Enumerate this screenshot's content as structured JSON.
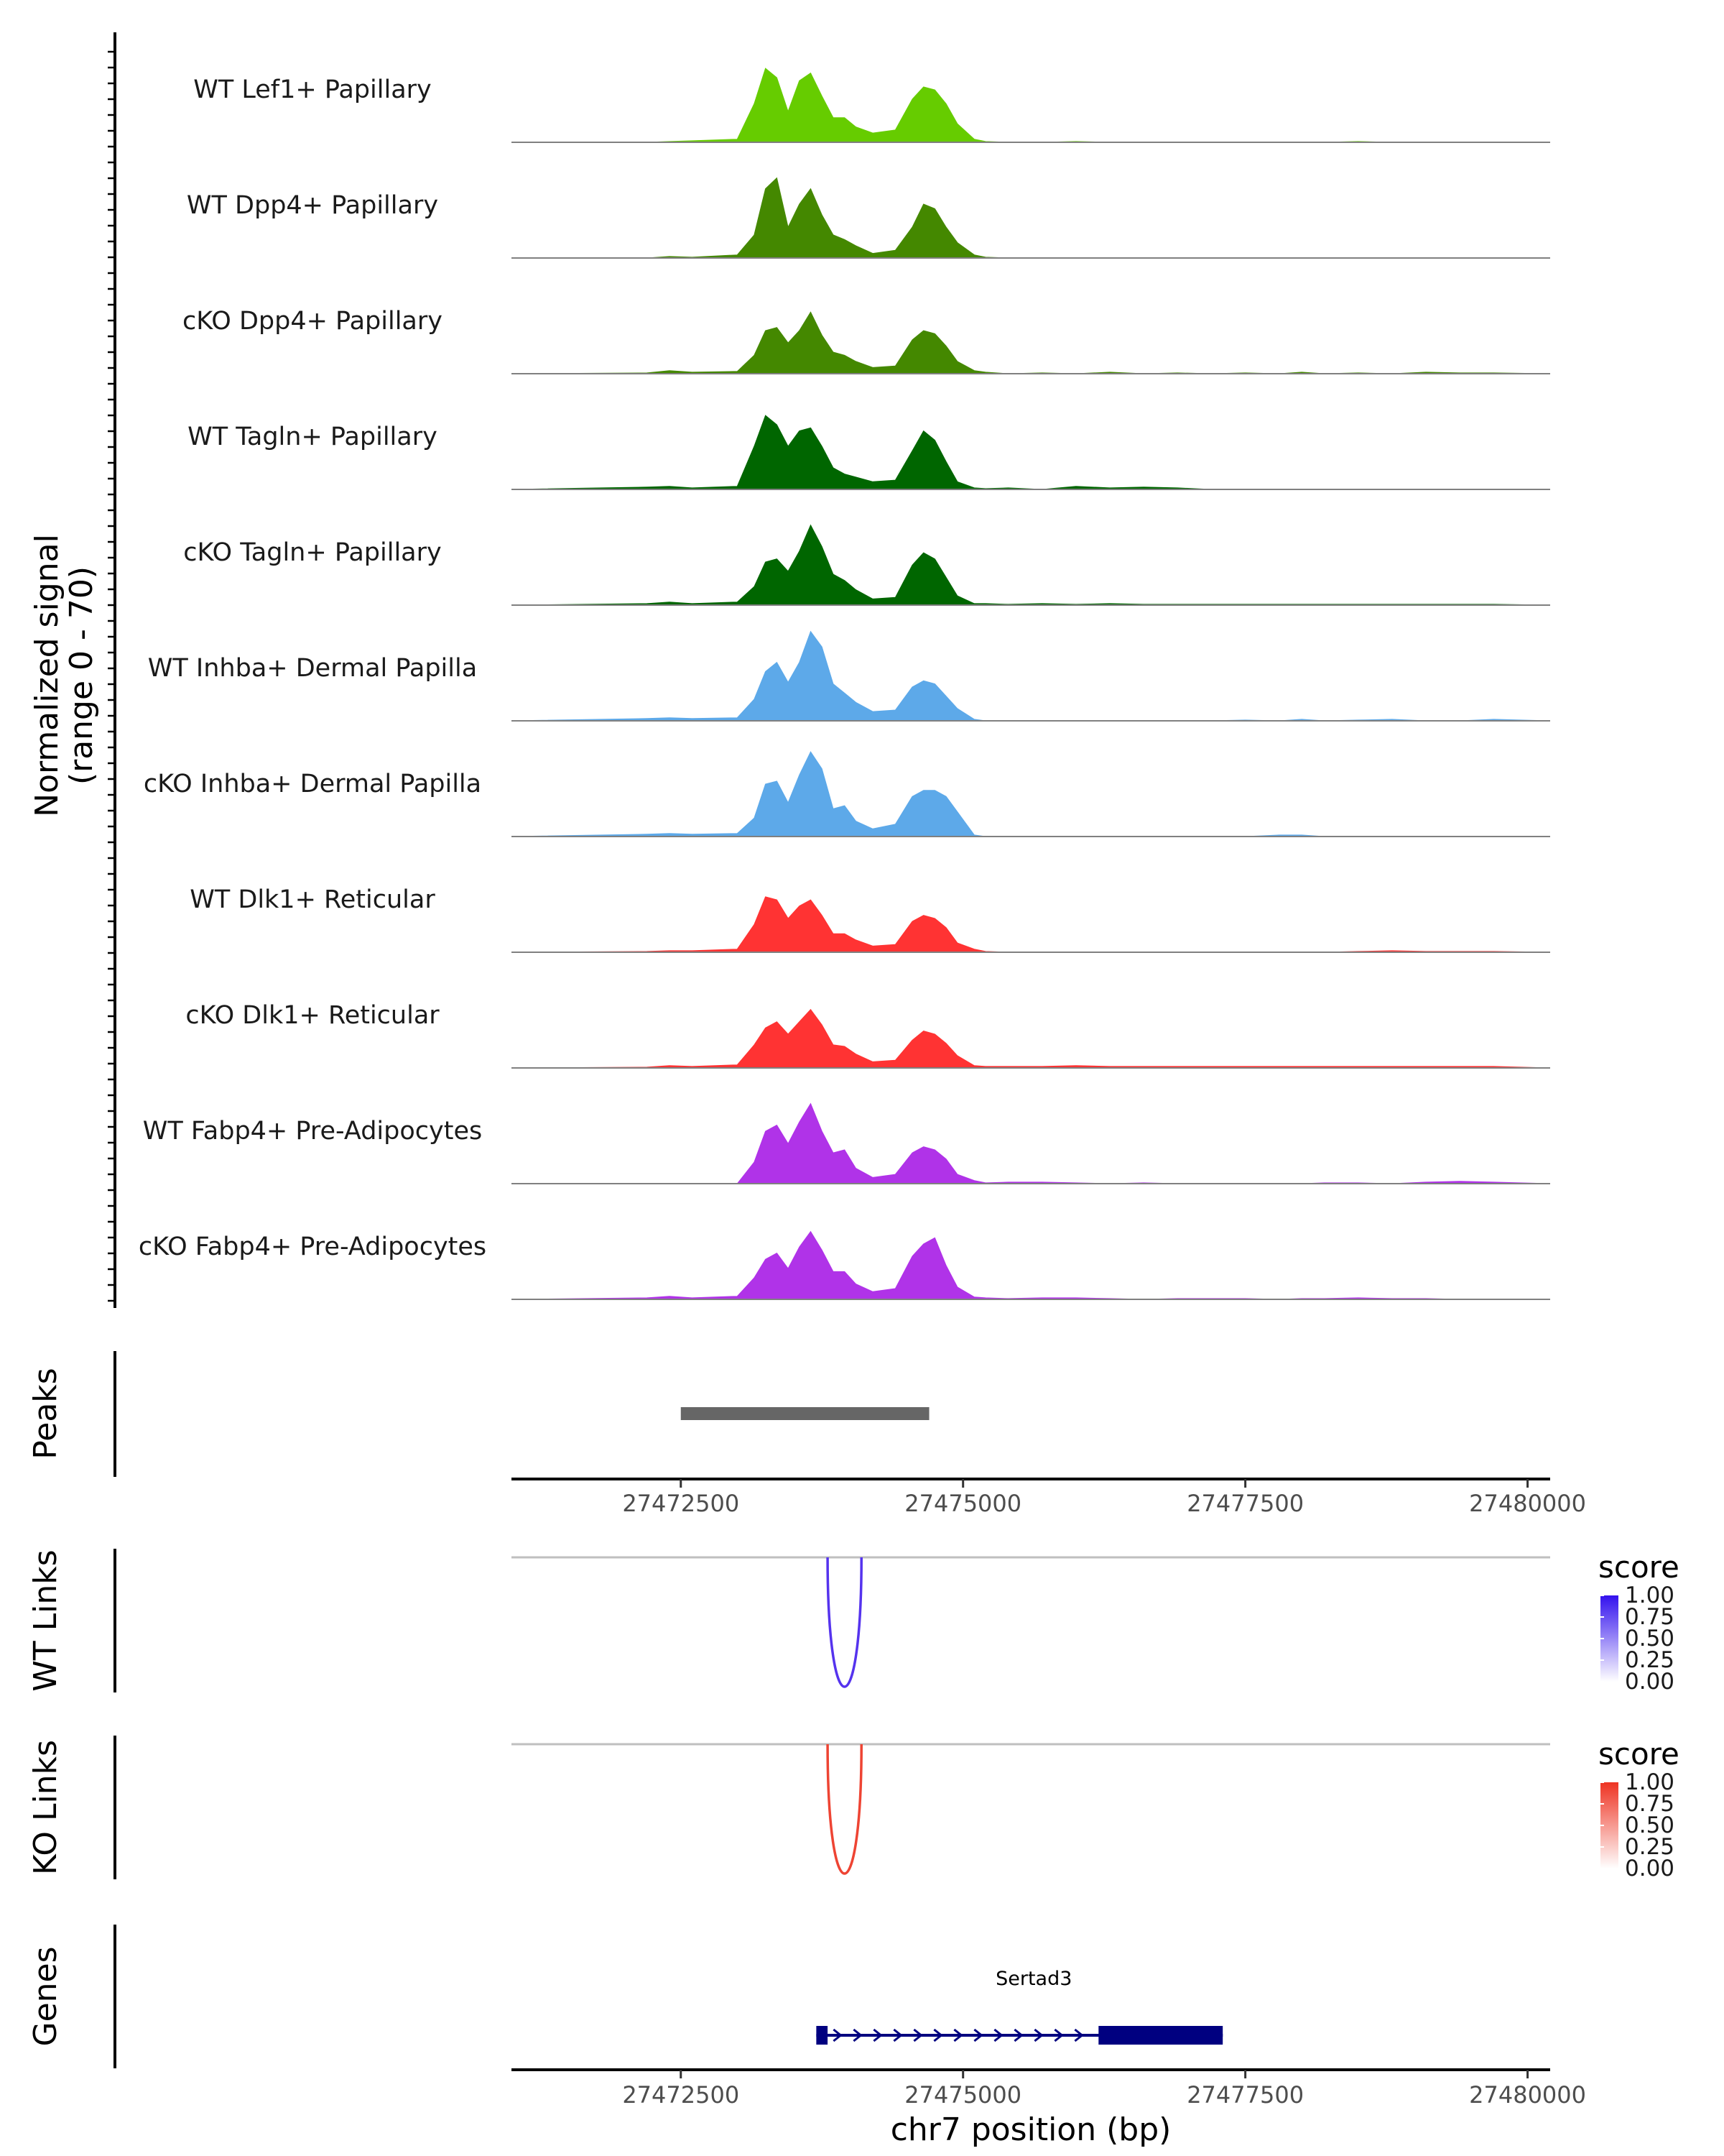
{
  "chart_data": {
    "type": "area",
    "title": "",
    "coverage": {
      "ylabel": "Normalized signal",
      "yrange_label": "(range 0 - 70)",
      "ylim": [
        0,
        70
      ],
      "region_x": [
        27471000,
        27480200
      ],
      "x": [
        27471000,
        27472200,
        27472400,
        27472600,
        27473000,
        27473150,
        27473250,
        27473350,
        27473450,
        27473550,
        27473650,
        27473750,
        27473850,
        27473950,
        27474050,
        27474200,
        27474400,
        27474550,
        27474650,
        27474750,
        27474850,
        27474950,
        27475100,
        27475200,
        27475400,
        27475700,
        27476000,
        27476300,
        27476600,
        27476900,
        27477200,
        27477500,
        27477800,
        27478000,
        27478200,
        27478500,
        27478800,
        27479100,
        27479400,
        27479700,
        27480200
      ],
      "series": [
        {
          "name": "WT Lef1+ Papillary",
          "color": "#66CC00",
          "values": [
            0,
            0,
            0.5,
            1,
            2,
            25,
            48,
            42,
            20,
            40,
            45,
            30,
            16,
            16,
            10,
            6,
            8,
            28,
            36,
            34,
            25,
            12,
            2,
            0.5,
            0,
            0,
            0.5,
            0,
            0,
            0,
            0,
            0,
            0,
            0,
            0,
            0.5,
            0,
            0,
            0,
            0,
            0
          ]
        },
        {
          "name": "WT Dpp4+ Papillary",
          "color": "#448800",
          "values": [
            0,
            0,
            1,
            0.5,
            2,
            15,
            45,
            52,
            20,
            35,
            45,
            28,
            15,
            12,
            8,
            3,
            5,
            20,
            35,
            32,
            20,
            10,
            2,
            0.5,
            0,
            0,
            0,
            0,
            0,
            0,
            0,
            0,
            0,
            0,
            0,
            0,
            0,
            0,
            0,
            0,
            0
          ]
        },
        {
          "name": "cKO Dpp4+ Papillary",
          "color": "#448800",
          "values": [
            0,
            0.5,
            2,
            1,
            1.5,
            12,
            28,
            30,
            20,
            28,
            40,
            25,
            14,
            12,
            8,
            4,
            5,
            22,
            28,
            26,
            18,
            8,
            2,
            1,
            0,
            0.5,
            0,
            1,
            0,
            0.5,
            0,
            0.5,
            0,
            1,
            0,
            0.5,
            0,
            1,
            0.5,
            0.5,
            0
          ]
        },
        {
          "name": "WT Tagln+ Papillary",
          "color": "#006600",
          "values": [
            0,
            1.5,
            2,
            1,
            2,
            28,
            48,
            42,
            28,
            38,
            40,
            28,
            14,
            10,
            8,
            5,
            6,
            25,
            38,
            32,
            18,
            5,
            1,
            0.5,
            1,
            0,
            2,
            1,
            1.5,
            1,
            0,
            0,
            0,
            0,
            0,
            0,
            0,
            0,
            0,
            0,
            0
          ]
        },
        {
          "name": "cKO Tagln+ Papillary",
          "color": "#006600",
          "values": [
            0,
            1,
            2,
            1,
            2,
            12,
            28,
            30,
            22,
            35,
            52,
            38,
            20,
            16,
            10,
            4,
            5,
            26,
            34,
            30,
            18,
            6,
            1,
            1,
            0.5,
            1,
            0.5,
            1,
            0.5,
            0.5,
            0.5,
            0.5,
            0.5,
            0.5,
            0.5,
            0.5,
            0.5,
            0.5,
            0.5,
            0.5,
            0
          ]
        },
        {
          "name": "WT Inhba+ Dermal Papilla",
          "color": "#5DA9E9",
          "values": [
            0,
            1.5,
            2,
            1.5,
            2,
            14,
            32,
            38,
            25,
            38,
            58,
            48,
            24,
            18,
            12,
            6,
            7,
            22,
            26,
            24,
            16,
            8,
            1,
            0,
            0,
            0,
            0,
            0,
            0,
            0,
            0,
            0.5,
            0,
            1,
            0,
            0.5,
            1,
            0,
            0,
            1,
            0
          ]
        },
        {
          "name": "cKO Inhba+ Dermal Papilla",
          "color": "#5DA9E9",
          "values": [
            0,
            1.5,
            2,
            1.5,
            2,
            12,
            34,
            36,
            22,
            40,
            55,
            44,
            18,
            20,
            10,
            5,
            8,
            26,
            30,
            30,
            26,
            16,
            1,
            0,
            0,
            0,
            0,
            0,
            0,
            0,
            0,
            0,
            1,
            1,
            0,
            0,
            0,
            0,
            0,
            0,
            0
          ]
        },
        {
          "name": "WT Dlk1+ Reticular",
          "color": "#FF3333",
          "values": [
            0,
            0.5,
            1,
            1,
            2,
            18,
            36,
            34,
            22,
            30,
            34,
            24,
            12,
            12,
            8,
            4,
            5,
            20,
            24,
            22,
            16,
            6,
            2,
            0.5,
            0,
            0,
            0,
            0,
            0,
            0,
            0,
            0,
            0,
            0,
            0,
            0.5,
            1,
            0.5,
            0.5,
            0.5,
            0
          ]
        },
        {
          "name": "cKO Dlk1+ Reticular",
          "color": "#FF3333",
          "values": [
            0,
            0.5,
            1.5,
            1,
            2,
            15,
            26,
            30,
            22,
            30,
            38,
            28,
            15,
            14,
            9,
            4,
            5,
            18,
            24,
            22,
            16,
            8,
            1.5,
            1,
            1,
            1,
            1.5,
            1,
            1,
            1,
            1,
            1,
            1,
            1,
            1,
            1,
            1,
            1,
            1,
            1,
            0
          ]
        },
        {
          "name": "WT Fabp4+ Pre-Adipocytes",
          "color": "#B033E8",
          "values": [
            0,
            0,
            0,
            0,
            0,
            14,
            34,
            38,
            26,
            40,
            52,
            34,
            20,
            22,
            10,
            4,
            6,
            20,
            24,
            22,
            16,
            6,
            2,
            0.5,
            1,
            1,
            0.5,
            0,
            0.5,
            0,
            0,
            0,
            0,
            0,
            0.5,
            0.5,
            0,
            1,
            1.5,
            1,
            0
          ]
        },
        {
          "name": "cKO Fabp4+ Pre-Adipocytes",
          "color": "#B033E8",
          "values": [
            0,
            1,
            2,
            1,
            2,
            14,
            26,
            30,
            20,
            34,
            44,
            32,
            18,
            18,
            10,
            5,
            7,
            28,
            36,
            40,
            22,
            8,
            1.5,
            1,
            0.5,
            1,
            1,
            0.5,
            0,
            0.5,
            0.5,
            0.5,
            0,
            0.5,
            0.5,
            1,
            0.5,
            0.5,
            0,
            0,
            0
          ]
        }
      ]
    },
    "peaks": {
      "label": "Peaks",
      "regions": [
        [
          27472500,
          27474700
        ]
      ],
      "color": "#666666"
    },
    "axis": {
      "xlim": [
        27471000,
        27480200
      ],
      "ticks": [
        27472500,
        27475000,
        27477500,
        27480000
      ],
      "tick_labels": [
        "27472500",
        "27475000",
        "27477500",
        "27480000"
      ],
      "xlabel": "chr7 position (bp)"
    },
    "links": [
      {
        "label": "WT Links",
        "start": 27473800,
        "end": 27474100,
        "score": 1.0,
        "color": "#5533EE",
        "legend_colors": [
          "#FFFFFF",
          "#3311EE"
        ]
      },
      {
        "label": "KO Links",
        "start": 27473800,
        "end": 27474100,
        "score": 1.0,
        "color": "#EE4433",
        "legend_colors": [
          "#FFFFFF",
          "#EE3322"
        ]
      }
    ],
    "legend": {
      "title": "score",
      "ticks": [
        "1.00",
        "0.75",
        "0.50",
        "0.25",
        "0.00"
      ]
    },
    "genes": {
      "label": "Genes",
      "items": [
        {
          "name": "Sertad3",
          "start": 27473700,
          "end": 27477300,
          "strand": "+",
          "exons": [
            [
              27473700,
              27473800
            ],
            [
              27476200,
              27477300
            ]
          ],
          "color": "#000080"
        }
      ]
    }
  }
}
